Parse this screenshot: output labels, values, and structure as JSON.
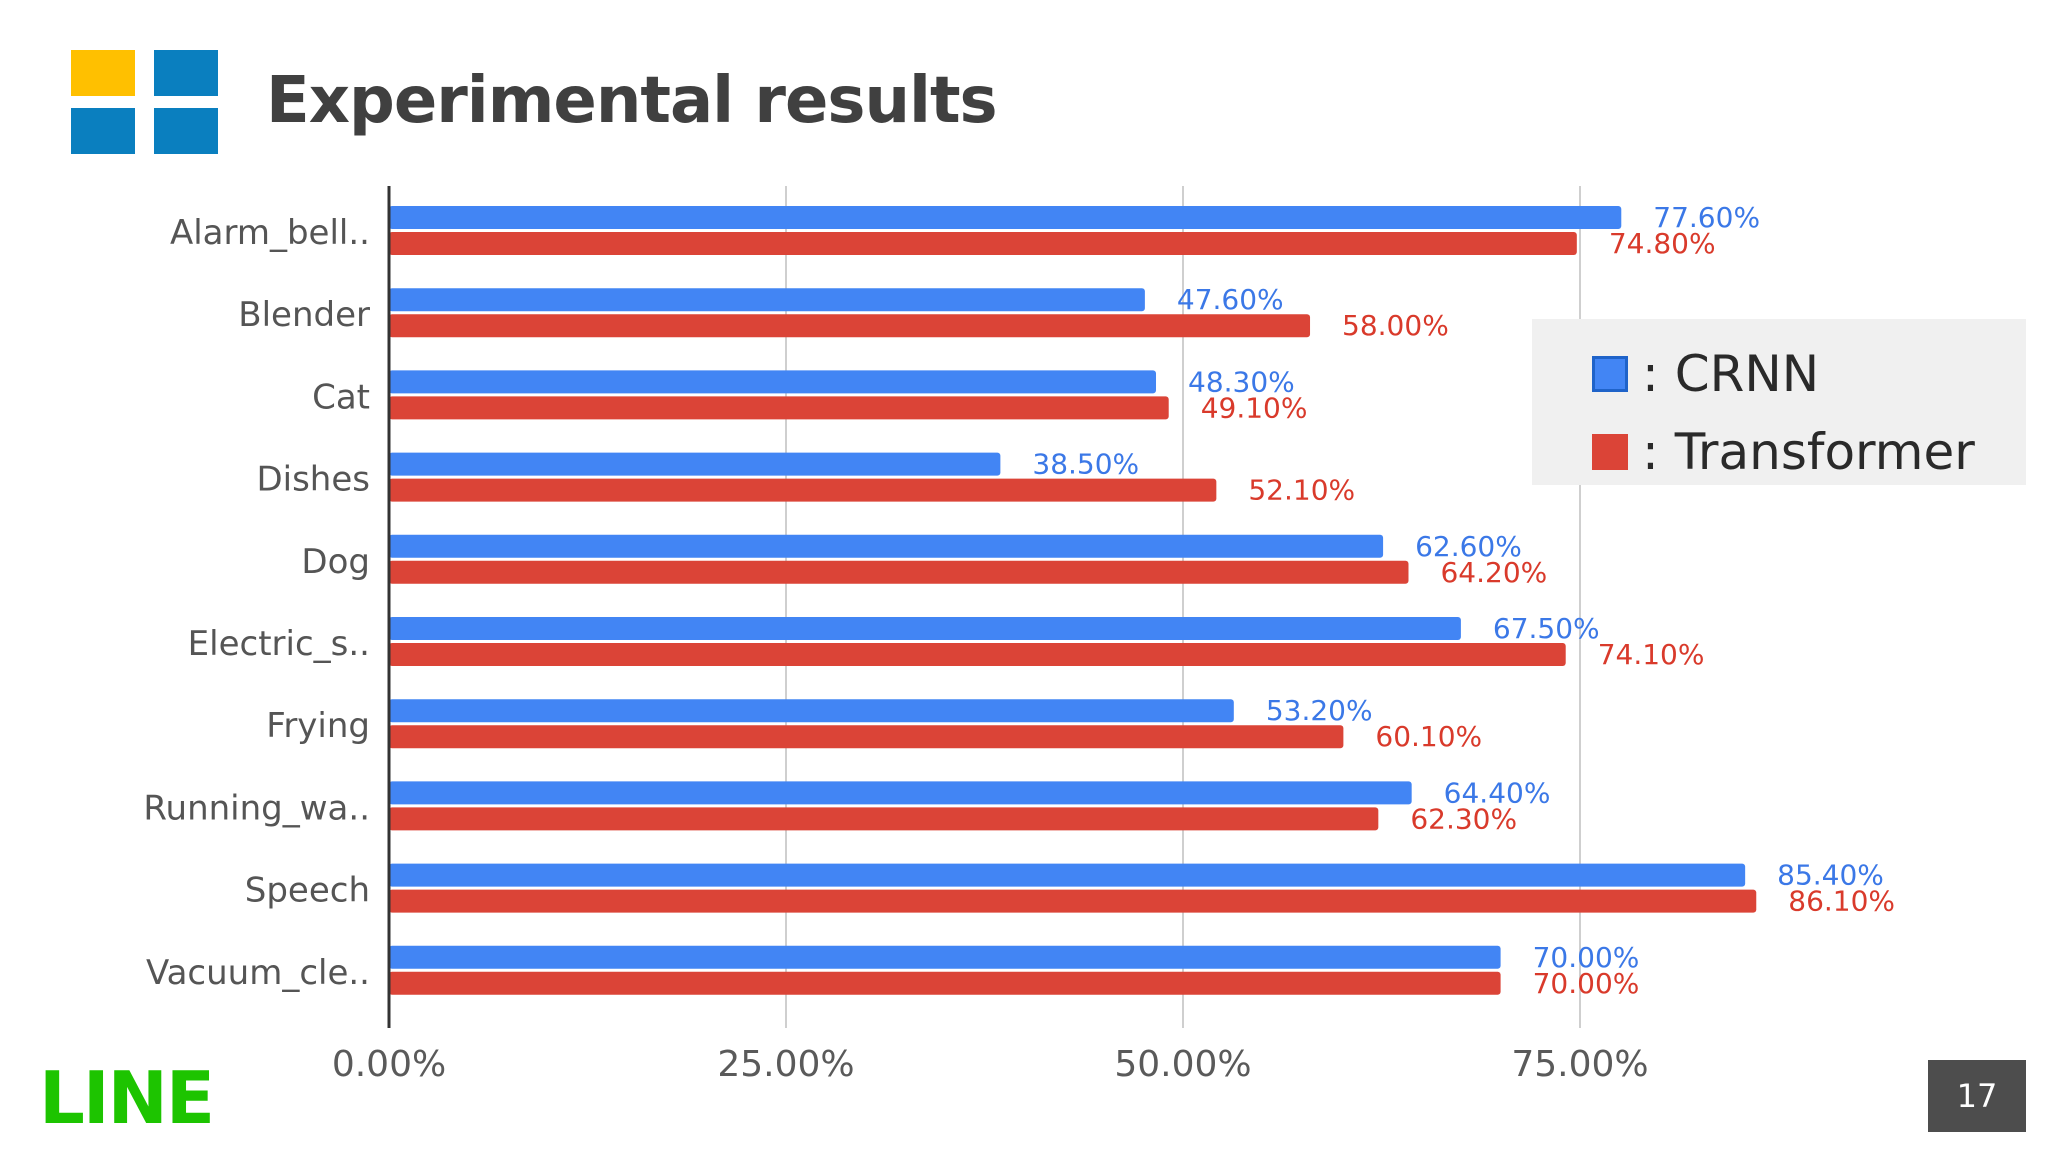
{
  "slide": {
    "title": "Experimental results",
    "page_number": "17",
    "brand": "LINE",
    "colors": {
      "logo_yellow": "#ffc000",
      "logo_blue": "#0a7fbf",
      "brand_green": "#1dc400"
    }
  },
  "legend": {
    "items": [
      {
        "label": ": CRNN",
        "color": "#4285f4"
      },
      {
        "label": ": Transformer",
        "color": "#db4437"
      }
    ]
  },
  "chart_data": {
    "type": "bar",
    "orientation": "horizontal",
    "categories": [
      "Alarm_bell..",
      "Blender",
      "Cat",
      "Dishes",
      "Dog",
      "Electric_s..",
      "Frying",
      "Running_wa..",
      "Speech",
      "Vacuum_cle.."
    ],
    "series": [
      {
        "name": "CRNN",
        "color": "#4285f4",
        "values": [
          77.6,
          47.6,
          48.3,
          38.5,
          62.6,
          67.5,
          53.2,
          64.4,
          85.4,
          70.0
        ],
        "labels": [
          "77.60%",
          "47.60%",
          "48.30%",
          "38.50%",
          "62.60%",
          "67.50%",
          "53.20%",
          "64.40%",
          "85.40%",
          "70.00%"
        ]
      },
      {
        "name": "Transformer",
        "color": "#db4437",
        "values": [
          74.8,
          58.0,
          49.1,
          52.1,
          64.2,
          74.1,
          60.1,
          62.3,
          86.1,
          70.0
        ],
        "labels": [
          "74.80%",
          "58.00%",
          "49.10%",
          "52.10%",
          "64.20%",
          "74.10%",
          "60.10%",
          "62.30%",
          "86.10%",
          "70.00%"
        ]
      }
    ],
    "xticks": [
      "0.00%",
      "25.00%",
      "50.00%",
      "75.00%"
    ],
    "xtick_values": [
      0,
      25,
      50,
      75
    ],
    "xlim": [
      0,
      100
    ],
    "grid": true,
    "legend": "right",
    "title": "",
    "xlabel": "",
    "ylabel": ""
  }
}
